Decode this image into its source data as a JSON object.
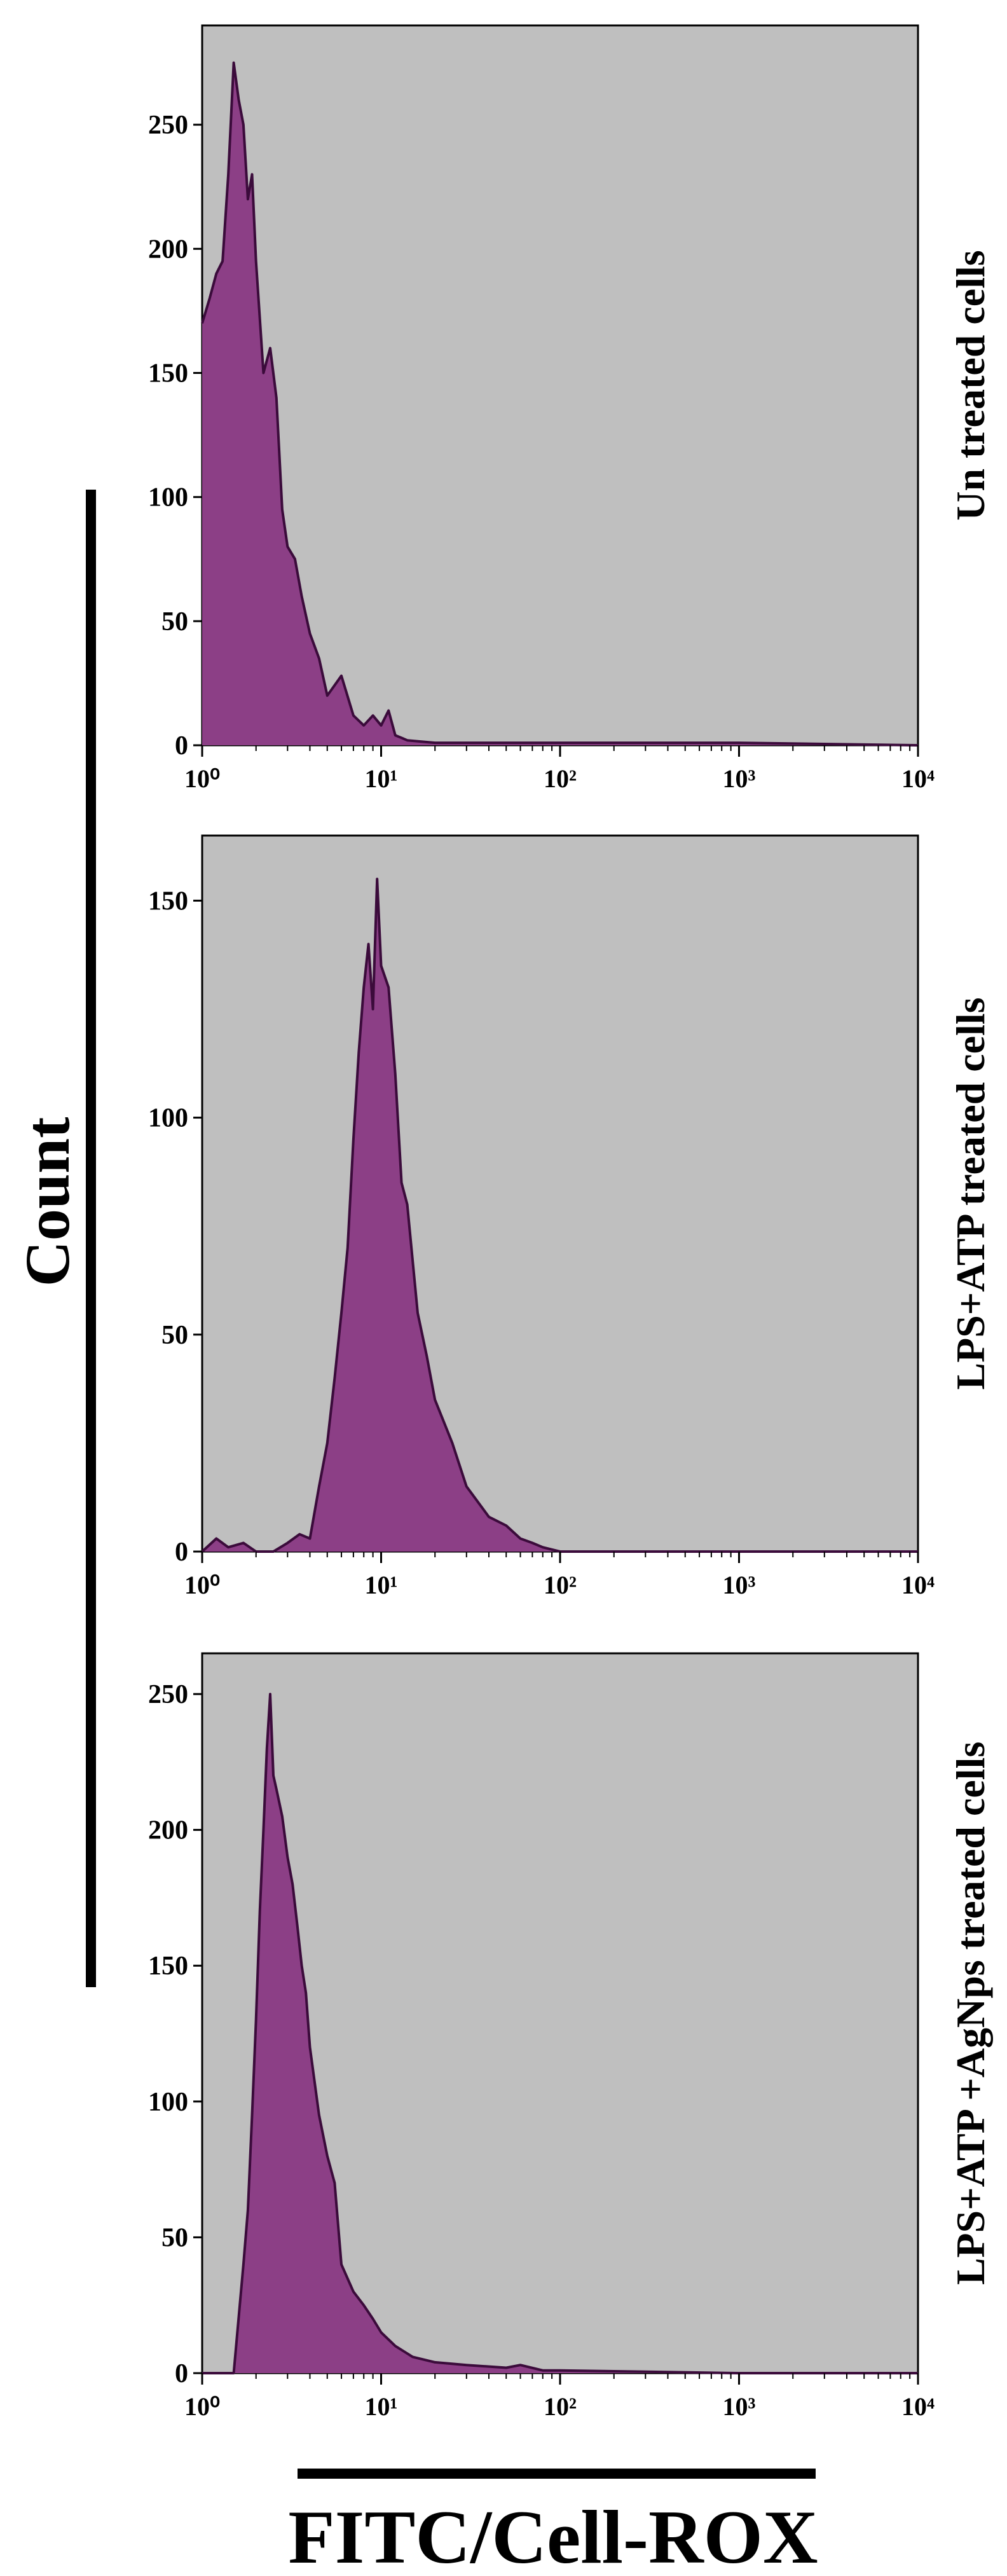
{
  "figure": {
    "y_axis_label": "Count",
    "x_axis_label": "FITC/Cell-ROX",
    "colors": {
      "panel_bg": "#bfbfbf",
      "fill": "#8c3f86",
      "line": "#3b0b3b"
    }
  },
  "chart_data": [
    {
      "type": "area",
      "title": "Un treated cells",
      "xscale": "log",
      "xlim": [
        1,
        10000
      ],
      "ylim": [
        0,
        290
      ],
      "yticks": [
        0,
        50,
        100,
        150,
        200,
        250
      ],
      "xtick_labels": [
        "10⁰",
        "10¹",
        "10²",
        "10³",
        "10⁴"
      ],
      "x": [
        1.0,
        1.1,
        1.2,
        1.3,
        1.4,
        1.5,
        1.6,
        1.7,
        1.8,
        1.9,
        2.0,
        2.2,
        2.4,
        2.6,
        2.8,
        3.0,
        3.3,
        3.6,
        4.0,
        4.5,
        5.0,
        6.0,
        7.0,
        8.0,
        9.0,
        10.0,
        11.0,
        12.0,
        13.0,
        14.0,
        20.0,
        100.0,
        1000.0,
        10000.0
      ],
      "values": [
        170,
        180,
        190,
        195,
        230,
        275,
        260,
        250,
        220,
        230,
        195,
        150,
        160,
        140,
        95,
        80,
        75,
        60,
        45,
        35,
        20,
        28,
        12,
        8,
        12,
        8,
        14,
        4,
        3,
        2,
        1,
        1,
        1,
        0
      ]
    },
    {
      "type": "area",
      "title": "LPS+ATP treated cells",
      "xscale": "log",
      "xlim": [
        1,
        10000
      ],
      "ylim": [
        0,
        165
      ],
      "yticks": [
        0,
        50,
        100,
        150
      ],
      "xtick_labels": [
        "10⁰",
        "10¹",
        "10²",
        "10³",
        "10⁴"
      ],
      "x": [
        1.0,
        1.2,
        1.4,
        1.7,
        2.0,
        2.5,
        3.0,
        3.5,
        4.0,
        4.5,
        5.0,
        5.5,
        6.0,
        6.5,
        7.0,
        7.5,
        8.0,
        8.5,
        9.0,
        9.5,
        10.0,
        11.0,
        12.0,
        13.0,
        14.0,
        16.0,
        18.0,
        20.0,
        25.0,
        30.0,
        40.0,
        50.0,
        60.0,
        70.0,
        80.0,
        100.0,
        1000.0,
        10000.0
      ],
      "values": [
        0,
        3,
        1,
        2,
        0,
        0,
        2,
        4,
        3,
        15,
        25,
        40,
        55,
        70,
        95,
        115,
        130,
        140,
        125,
        155,
        135,
        130,
        110,
        85,
        80,
        55,
        45,
        35,
        25,
        15,
        8,
        6,
        3,
        2,
        1,
        0,
        0,
        0
      ]
    },
    {
      "type": "area",
      "title": "LPS+ATP +AgNps treated cells",
      "xscale": "log",
      "xlim": [
        1,
        10000
      ],
      "ylim": [
        0,
        265
      ],
      "yticks": [
        0,
        50,
        100,
        150,
        200,
        250
      ],
      "xtick_labels": [
        "10⁰",
        "10¹",
        "10²",
        "10³",
        "10⁴"
      ],
      "x": [
        1.0,
        1.5,
        1.7,
        1.8,
        1.9,
        2.0,
        2.1,
        2.2,
        2.3,
        2.4,
        2.5,
        2.6,
        2.8,
        3.0,
        3.2,
        3.4,
        3.6,
        3.8,
        4.0,
        4.5,
        5.0,
        5.5,
        6.0,
        7.0,
        8.0,
        9.0,
        10.0,
        12.0,
        15.0,
        20.0,
        30.0,
        50.0,
        60.0,
        80.0,
        100.0,
        1000.0,
        10000.0
      ],
      "values": [
        0,
        0,
        40,
        60,
        95,
        130,
        170,
        200,
        230,
        250,
        220,
        215,
        205,
        190,
        180,
        165,
        150,
        140,
        120,
        95,
        80,
        70,
        40,
        30,
        25,
        20,
        15,
        10,
        6,
        4,
        3,
        2,
        3,
        1,
        1,
        0,
        0
      ]
    }
  ]
}
